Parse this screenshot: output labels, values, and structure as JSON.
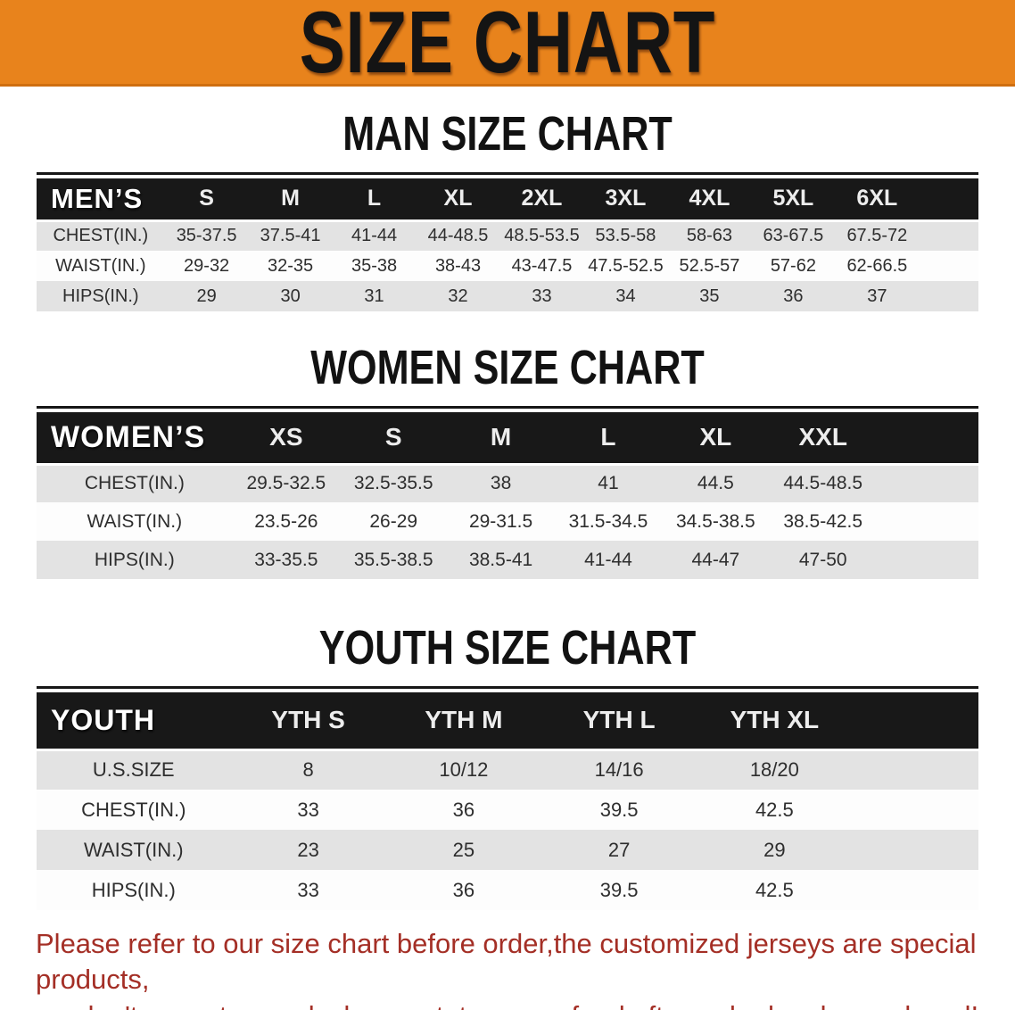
{
  "banner": {
    "title": "SIZE CHART",
    "bg_color": "#E8831C",
    "text_color": "#141414"
  },
  "colors": {
    "table_header_bg": "#181818",
    "row_stripe": "#e3e3e3",
    "disclaimer_text": "#A42F26"
  },
  "sections": [
    {
      "key": "men",
      "heading": "MAN SIZE CHART",
      "table": {
        "header_label": "MEN’S",
        "sizes": [
          "S",
          "M",
          "L",
          "XL",
          "2XL",
          "3XL",
          "4XL",
          "5XL",
          "6XL"
        ],
        "rows": [
          {
            "label": "CHEST(IN.)",
            "values": [
              "35-37.5",
              "37.5-41",
              "41-44",
              "44-48.5",
              "48.5-53.5",
              "53.5-58",
              "58-63",
              "63-67.5",
              "67.5-72"
            ]
          },
          {
            "label": "WAIST(IN.)",
            "values": [
              "29-32",
              "32-35",
              "35-38",
              "38-43",
              "43-47.5",
              "47.5-52.5",
              "52.5-57",
              "57-62",
              "62-66.5"
            ]
          },
          {
            "label": "HIPS(IN.)",
            "values": [
              "29",
              "30",
              "31",
              "32",
              "33",
              "34",
              "35",
              "36",
              "37"
            ]
          }
        ]
      }
    },
    {
      "key": "women",
      "heading": "WOMEN SIZE CHART",
      "table": {
        "header_label": "WOMEN’S",
        "sizes": [
          "XS",
          "S",
          "M",
          "L",
          "XL",
          "XXL"
        ],
        "rows": [
          {
            "label": "CHEST(IN.)",
            "values": [
              "29.5-32.5",
              "32.5-35.5",
              "38",
              "41",
              "44.5",
              "44.5-48.5"
            ]
          },
          {
            "label": "WAIST(IN.)",
            "values": [
              "23.5-26",
              "26-29",
              "29-31.5",
              "31.5-34.5",
              "34.5-38.5",
              "38.5-42.5"
            ]
          },
          {
            "label": "HIPS(IN.)",
            "values": [
              "33-35.5",
              "35.5-38.5",
              "38.5-41",
              "41-44",
              "44-47",
              "47-50"
            ]
          }
        ]
      }
    },
    {
      "key": "youth",
      "heading": "YOUTH SIZE CHART",
      "table": {
        "header_label": "YOUTH",
        "sizes": [
          "YTH S",
          "YTH M",
          "YTH L",
          "YTH XL"
        ],
        "rows": [
          {
            "label": "U.S.SIZE",
            "values": [
              "8",
              "10/12",
              "14/16",
              "18/20"
            ]
          },
          {
            "label": "CHEST(IN.)",
            "values": [
              "33",
              "36",
              "39.5",
              "42.5"
            ]
          },
          {
            "label": "WAIST(IN.)",
            "values": [
              "23",
              "25",
              "27",
              "29"
            ]
          },
          {
            "label": "HIPS(IN.)",
            "values": [
              "33",
              "36",
              "39.5",
              "42.5"
            ]
          }
        ]
      }
    }
  ],
  "disclaimer": {
    "line1": "Please refer to our size chart before order,the customized jerseys are special products,",
    "line2": "we don't accept cancel, change, teturn or refund after order has been placed!"
  }
}
